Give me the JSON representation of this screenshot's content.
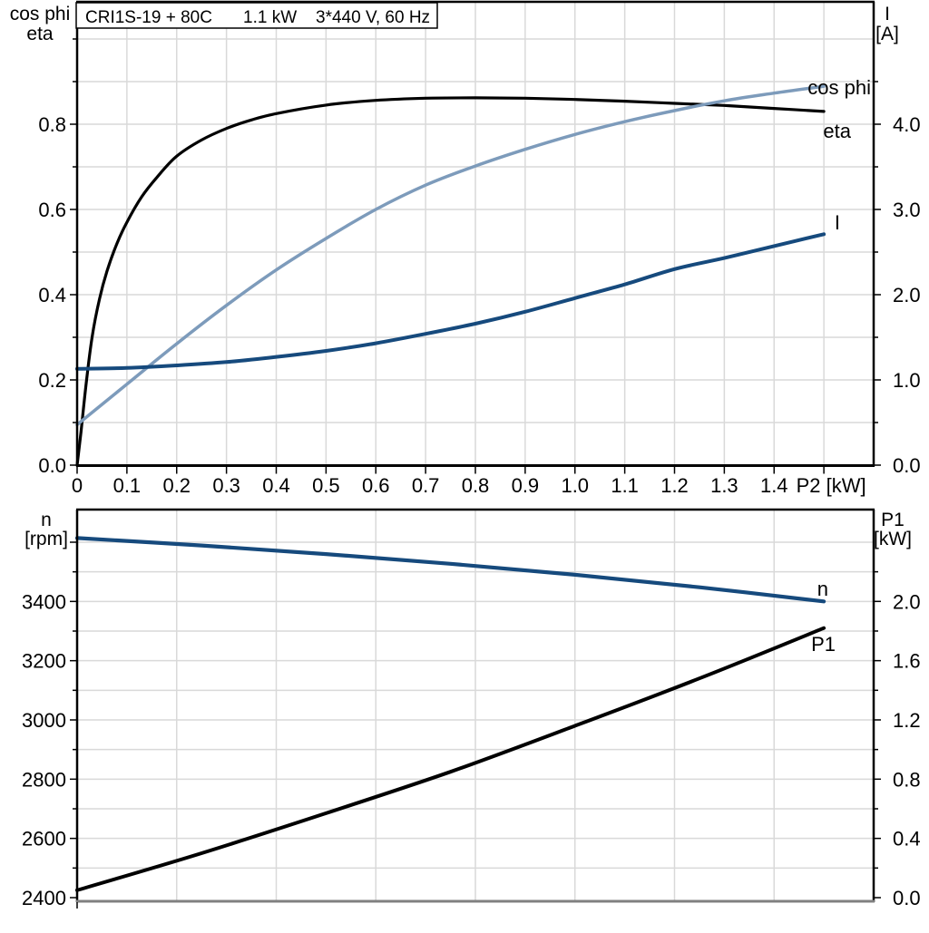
{
  "panel": {
    "title_box": {
      "model": "CRI1S-19 + 80C",
      "power": "1.1 kW",
      "voltage": "3*440 V, 60 Hz"
    }
  },
  "colors": {
    "black": "#000000",
    "light_blue": "#7d9bbb",
    "dark_blue": "#164a7d",
    "grid": "#d9d9d9",
    "frame": "#000000",
    "frame_gray": "#808080"
  },
  "chart_data": [
    {
      "type": "line",
      "title": "CRI1S-19 + 80C  1.1 kW  3*440 V, 60 Hz",
      "xlabel": "P2 [kW]",
      "x_axis": {
        "range": [
          0,
          1.6
        ],
        "tick_values": [
          0,
          0.1,
          0.2,
          0.3,
          0.4,
          0.5,
          0.6,
          0.7,
          0.8,
          0.9,
          1.0,
          1.1,
          1.2,
          1.3,
          1.4,
          1.5
        ],
        "tick_labels": [
          "0",
          "0.1",
          "0.2",
          "0.3",
          "0.4",
          "0.5",
          "0.6",
          "0.7",
          "0.8",
          "0.9",
          "1.0",
          "1.1",
          "1.2",
          "1.3",
          "1.4"
        ],
        "end_label": {
          "value": 1.5,
          "text": "P2 [kW]"
        },
        "grid_values": [
          0.1,
          0.2,
          0.3,
          0.4,
          0.5,
          0.6,
          0.7,
          0.8,
          0.9,
          1.0,
          1.1,
          1.2,
          1.3,
          1.4,
          1.5
        ]
      },
      "left_axis": {
        "header": [
          "cos phi",
          "eta"
        ],
        "range": [
          0,
          1.09
        ],
        "tick_values": [
          0,
          0.2,
          0.4,
          0.6,
          0.8
        ],
        "tick_labels": [
          "0.0",
          "0.2",
          "0.4",
          "0.6",
          "0.8"
        ],
        "minor_tick_values": [
          0.1,
          0.3,
          0.5,
          0.7,
          0.9,
          1.0
        ],
        "grid_values": [
          0.1,
          0.2,
          0.3,
          0.4,
          0.5,
          0.6,
          0.7,
          0.8,
          0.9,
          1.0
        ]
      },
      "right_axis": {
        "header": [
          "I",
          "[A]"
        ],
        "range": [
          0,
          5.4
        ],
        "tick_values": [
          0,
          1,
          2,
          3,
          4
        ],
        "tick_labels": [
          "0.0",
          "1.0",
          "2.0",
          "3.0",
          "4.0"
        ],
        "minor_tick_values": [
          0.5,
          1.5,
          2.5,
          3.5,
          4.5
        ]
      },
      "series": [
        {
          "name": "eta",
          "axis": "left",
          "color": "black",
          "width": 3.2,
          "points": [
            [
              0,
              0
            ],
            [
              0.008,
              0.08
            ],
            [
              0.018,
              0.19
            ],
            [
              0.03,
              0.3
            ],
            [
              0.045,
              0.39
            ],
            [
              0.06,
              0.455
            ],
            [
              0.08,
              0.52
            ],
            [
              0.1,
              0.57
            ],
            [
              0.13,
              0.63
            ],
            [
              0.16,
              0.675
            ],
            [
              0.2,
              0.725
            ],
            [
              0.25,
              0.763
            ],
            [
              0.3,
              0.79
            ],
            [
              0.35,
              0.81
            ],
            [
              0.4,
              0.825
            ],
            [
              0.5,
              0.845
            ],
            [
              0.6,
              0.856
            ],
            [
              0.7,
              0.861
            ],
            [
              0.8,
              0.862
            ],
            [
              0.9,
              0.861
            ],
            [
              1.0,
              0.858
            ],
            [
              1.1,
              0.854
            ],
            [
              1.2,
              0.849
            ],
            [
              1.3,
              0.844
            ],
            [
              1.4,
              0.837
            ],
            [
              1.5,
              0.83
            ]
          ]
        },
        {
          "name": "cos phi",
          "axis": "left",
          "color": "light_blue",
          "width": 3.5,
          "points": [
            [
              0,
              0.095
            ],
            [
              0.1,
              0.19
            ],
            [
              0.2,
              0.285
            ],
            [
              0.3,
              0.375
            ],
            [
              0.4,
              0.458
            ],
            [
              0.5,
              0.532
            ],
            [
              0.6,
              0.6
            ],
            [
              0.7,
              0.657
            ],
            [
              0.8,
              0.702
            ],
            [
              0.9,
              0.741
            ],
            [
              1.0,
              0.776
            ],
            [
              1.1,
              0.806
            ],
            [
              1.2,
              0.832
            ],
            [
              1.3,
              0.855
            ],
            [
              1.4,
              0.873
            ],
            [
              1.5,
              0.889
            ]
          ]
        },
        {
          "name": "I",
          "axis": "right",
          "color": "dark_blue",
          "width": 4,
          "points": [
            [
              0,
              1.13
            ],
            [
              0.1,
              1.14
            ],
            [
              0.2,
              1.17
            ],
            [
              0.3,
              1.21
            ],
            [
              0.4,
              1.27
            ],
            [
              0.5,
              1.34
            ],
            [
              0.6,
              1.43
            ],
            [
              0.7,
              1.54
            ],
            [
              0.8,
              1.66
            ],
            [
              0.9,
              1.8
            ],
            [
              1.0,
              1.96
            ],
            [
              1.1,
              2.12
            ],
            [
              1.2,
              2.3
            ],
            [
              1.3,
              2.43
            ],
            [
              1.4,
              2.57
            ],
            [
              1.5,
              2.71
            ]
          ]
        }
      ],
      "curve_labels": [
        {
          "text": "cos phi",
          "color": "light_blue"
        },
        {
          "text": "eta",
          "color": "black"
        },
        {
          "text": "I",
          "color": "dark_blue"
        }
      ]
    },
    {
      "type": "line",
      "title": "",
      "xlabel": "",
      "x_axis": {
        "range": [
          0,
          1.6
        ],
        "tick_values": [
          0
        ],
        "tick_labels": [],
        "grid_values": [
          0.2,
          0.4,
          0.6,
          0.8,
          1.0,
          1.2,
          1.4
        ]
      },
      "left_axis": {
        "header": [
          "n",
          "[rpm]"
        ],
        "range": [
          2400,
          3600
        ],
        "tick_values": [
          2400,
          2600,
          2800,
          3000,
          3200,
          3400
        ],
        "tick_labels": [
          "2400",
          "2600",
          "2800",
          "3000",
          "3200",
          "3400"
        ],
        "unlabeled_tick_values": [
          3600
        ],
        "minor_tick_values": [
          2500,
          2700,
          2900,
          3100,
          3300,
          3500
        ],
        "grid_values": [
          2500,
          2600,
          2700,
          2800,
          2900,
          3000,
          3100,
          3200,
          3300,
          3400,
          3500,
          3600
        ]
      },
      "right_axis": {
        "header": [
          "P1",
          "[kW]"
        ],
        "range": [
          0,
          2.4
        ],
        "tick_values": [
          0,
          0.4,
          0.8,
          1.2,
          1.6,
          2.0
        ],
        "tick_labels": [
          "0.0",
          "0.4",
          "0.8",
          "1.2",
          "1.6",
          "2.0"
        ],
        "minor_tick_values": [
          0.2,
          0.6,
          1.0,
          1.4,
          1.8,
          2.2
        ]
      },
      "series": [
        {
          "name": "n",
          "axis": "left",
          "color": "dark_blue",
          "width": 4.2,
          "points": [
            [
              0,
              3614
            ],
            [
              0.25,
              3589
            ],
            [
              0.5,
              3560
            ],
            [
              0.75,
              3527
            ],
            [
              1.0,
              3490
            ],
            [
              1.25,
              3448
            ],
            [
              1.5,
              3400
            ]
          ]
        },
        {
          "name": "P1",
          "axis": "right",
          "color": "black",
          "width": 4,
          "points": [
            [
              0,
              0.05
            ],
            [
              0.25,
              0.3
            ],
            [
              0.5,
              0.57
            ],
            [
              0.75,
              0.85
            ],
            [
              1.0,
              1.16
            ],
            [
              1.25,
              1.48
            ],
            [
              1.5,
              1.82
            ]
          ]
        }
      ],
      "curve_labels": [
        {
          "text": "n",
          "color": "dark_blue"
        },
        {
          "text": "P1",
          "color": "black"
        }
      ]
    }
  ]
}
